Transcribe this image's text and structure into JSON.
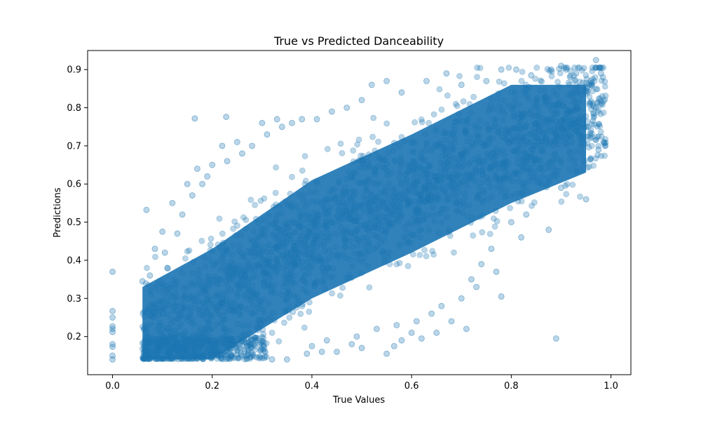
{
  "chart_data": {
    "type": "scatter",
    "title": "True vs Predicted Danceability",
    "xlabel": "True Values",
    "ylabel": "Predictions",
    "xlim": [
      -0.05,
      1.04
    ],
    "ylim": [
      0.1,
      0.95
    ],
    "x_ticks": [
      {
        "value": 0.0,
        "label": "0.0"
      },
      {
        "value": 0.2,
        "label": "0.2"
      },
      {
        "value": 0.4,
        "label": "0.4"
      },
      {
        "value": 0.6,
        "label": "0.6"
      },
      {
        "value": 0.8,
        "label": "0.8"
      },
      {
        "value": 1.0,
        "label": "1.0"
      }
    ],
    "y_ticks": [
      {
        "value": 0.2,
        "label": "0.2"
      },
      {
        "value": 0.3,
        "label": "0.3"
      },
      {
        "value": 0.4,
        "label": "0.4"
      },
      {
        "value": 0.5,
        "label": "0.5"
      },
      {
        "value": 0.6,
        "label": "0.6"
      },
      {
        "value": 0.7,
        "label": "0.7"
      },
      {
        "value": 0.8,
        "label": "0.8"
      },
      {
        "value": 0.9,
        "label": "0.9"
      }
    ],
    "grid": false,
    "legend": "none",
    "marker_color": "#1f77b4",
    "marker_alpha": 0.3,
    "dense_band": {
      "x_range": [
        0.06,
        0.99
      ],
      "y_range": [
        0.14,
        0.93
      ],
      "trend_points": [
        [
          0.06,
          0.18
        ],
        [
          0.2,
          0.28
        ],
        [
          0.4,
          0.46
        ],
        [
          0.6,
          0.58
        ],
        [
          0.8,
          0.71
        ],
        [
          0.95,
          0.79
        ]
      ]
    },
    "points": [
      [
        0.0,
        0.37
      ],
      [
        0.0,
        0.267
      ],
      [
        0.0,
        0.25
      ],
      [
        0.0,
        0.227
      ],
      [
        0.0,
        0.22
      ],
      [
        0.0,
        0.212
      ],
      [
        0.0,
        0.18
      ],
      [
        0.0,
        0.173
      ],
      [
        0.0,
        0.15
      ],
      [
        0.0,
        0.14
      ],
      [
        0.068,
        0.532
      ],
      [
        0.165,
        0.772
      ],
      [
        0.228,
        0.776
      ],
      [
        0.1,
        0.475
      ],
      [
        0.085,
        0.43
      ],
      [
        0.075,
        0.36
      ],
      [
        0.06,
        0.345
      ],
      [
        0.12,
        0.55
      ],
      [
        0.15,
        0.6
      ],
      [
        0.17,
        0.64
      ],
      [
        0.2,
        0.65
      ],
      [
        0.22,
        0.7
      ],
      [
        0.25,
        0.71
      ],
      [
        0.3,
        0.76
      ],
      [
        0.33,
        0.77
      ],
      [
        0.36,
        0.76
      ],
      [
        0.38,
        0.77
      ],
      [
        0.44,
        0.79
      ],
      [
        0.47,
        0.8
      ],
      [
        0.52,
        0.86
      ],
      [
        0.55,
        0.87
      ],
      [
        0.63,
        0.87
      ],
      [
        0.67,
        0.89
      ],
      [
        0.78,
        0.9
      ],
      [
        0.81,
        0.9
      ],
      [
        0.88,
        0.9
      ],
      [
        0.9,
        0.91
      ],
      [
        0.91,
        0.9
      ],
      [
        0.97,
        0.925
      ],
      [
        0.98,
        0.89
      ],
      [
        0.985,
        0.71
      ],
      [
        0.975,
        0.69
      ],
      [
        0.89,
        0.195
      ],
      [
        0.875,
        0.48
      ],
      [
        0.82,
        0.46
      ],
      [
        0.78,
        0.305
      ],
      [
        0.77,
        0.37
      ],
      [
        0.73,
        0.33
      ],
      [
        0.71,
        0.22
      ],
      [
        0.68,
        0.24
      ],
      [
        0.65,
        0.21
      ],
      [
        0.62,
        0.195
      ],
      [
        0.6,
        0.21
      ],
      [
        0.58,
        0.19
      ],
      [
        0.565,
        0.175
      ],
      [
        0.55,
        0.155
      ],
      [
        0.5,
        0.17
      ],
      [
        0.48,
        0.18
      ],
      [
        0.45,
        0.16
      ],
      [
        0.42,
        0.16
      ],
      [
        0.39,
        0.155
      ],
      [
        0.35,
        0.14
      ],
      [
        0.32,
        0.14
      ],
      [
        0.95,
        0.56
      ],
      [
        0.9,
        0.59
      ],
      [
        0.86,
        0.6
      ],
      [
        0.83,
        0.52
      ],
      [
        0.8,
        0.5
      ],
      [
        0.76,
        0.43
      ],
      [
        0.74,
        0.39
      ],
      [
        0.72,
        0.35
      ],
      [
        0.7,
        0.3
      ],
      [
        0.66,
        0.28
      ],
      [
        0.64,
        0.26
      ],
      [
        0.61,
        0.24
      ],
      [
        0.57,
        0.23
      ],
      [
        0.53,
        0.22
      ],
      [
        0.49,
        0.2
      ],
      [
        0.43,
        0.19
      ],
      [
        0.4,
        0.175
      ],
      [
        0.105,
        0.42
      ],
      [
        0.11,
        0.38
      ],
      [
        0.13,
        0.47
      ],
      [
        0.14,
        0.52
      ],
      [
        0.16,
        0.57
      ],
      [
        0.18,
        0.6
      ],
      [
        0.19,
        0.62
      ],
      [
        0.23,
        0.66
      ],
      [
        0.26,
        0.68
      ],
      [
        0.28,
        0.7
      ],
      [
        0.31,
        0.73
      ],
      [
        0.34,
        0.75
      ],
      [
        0.41,
        0.77
      ],
      [
        0.5,
        0.82
      ],
      [
        0.58,
        0.84
      ],
      [
        0.7,
        0.86
      ],
      [
        0.75,
        0.87
      ],
      [
        0.84,
        0.885
      ],
      [
        0.93,
        0.89
      ],
      [
        0.96,
        0.87
      ]
    ]
  }
}
